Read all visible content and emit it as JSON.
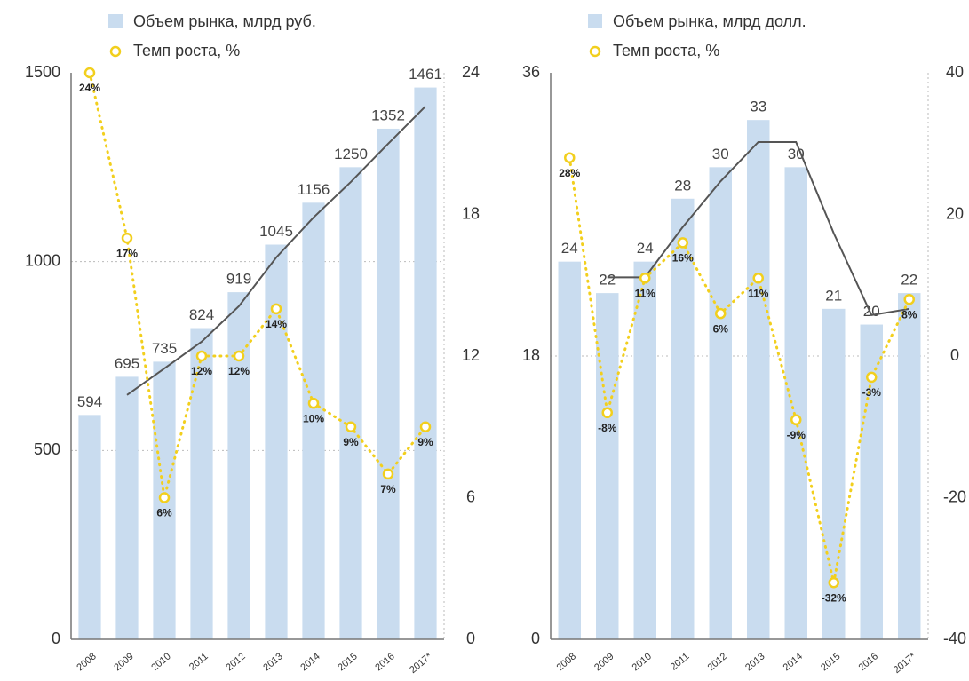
{
  "chart_data": [
    {
      "type": "bar",
      "categories": [
        "2008",
        "2009",
        "2010",
        "2011",
        "2012",
        "2013",
        "2014",
        "2015",
        "2016",
        "2017*"
      ],
      "series": [
        {
          "name": "Объем рынка, млрд руб.",
          "color": "#c9dcef",
          "values": [
            594,
            695,
            735,
            824,
            919,
            1045,
            1156,
            1250,
            1352,
            1461
          ]
        },
        {
          "name": "Темп роста, %",
          "color": "#f2cf1d",
          "type": "line",
          "axis": "y2",
          "values": [
            24,
            17,
            6,
            12,
            12,
            14,
            10,
            9,
            7,
            9
          ],
          "value_labels": [
            "24%",
            "17%",
            "6%",
            "12%",
            "12%",
            "14%",
            "10%",
            "9%",
            "7%",
            "9%"
          ]
        }
      ],
      "trend_line": {
        "color": "#555555",
        "values": [
          null,
          647,
          717,
          788,
          882,
          1011,
          1117,
          1211,
          1312,
          1411
        ]
      },
      "ylim": [
        0,
        1500
      ],
      "yticks": [
        0,
        500,
        1000,
        1500
      ],
      "y2lim": [
        0,
        24
      ],
      "y2ticks": [
        0,
        6,
        12,
        18,
        24
      ],
      "grid": true
    },
    {
      "type": "bar",
      "categories": [
        "2008",
        "2009",
        "2010",
        "2011",
        "2012",
        "2013",
        "2014",
        "2015",
        "2016",
        "2017*"
      ],
      "series": [
        {
          "name": "Объем рынка, млрд долл.",
          "color": "#c9dcef",
          "values": [
            24,
            22,
            24,
            28,
            30,
            33,
            30,
            21,
            20,
            22
          ]
        },
        {
          "name": "Темп роста, %",
          "color": "#f2cf1d",
          "type": "line",
          "axis": "y2",
          "values": [
            28,
            -8,
            11,
            16,
            6,
            11,
            -9,
            -32,
            -3,
            8
          ],
          "value_labels": [
            "28%",
            "-8%",
            "11%",
            "16%",
            "6%",
            "11%",
            "-9%",
            "-32%",
            "-3%",
            "8%"
          ]
        }
      ],
      "trend_line": {
        "color": "#555555",
        "values": [
          null,
          23.0,
          23.0,
          26.2,
          29.1,
          31.6,
          31.6,
          25.8,
          20.6,
          21.0
        ]
      },
      "ylim": [
        0,
        36
      ],
      "yticks": [
        0,
        18,
        36
      ],
      "y2lim": [
        -40,
        40
      ],
      "y2ticks": [
        -40,
        -20,
        0,
        20,
        40
      ],
      "grid": true
    }
  ]
}
